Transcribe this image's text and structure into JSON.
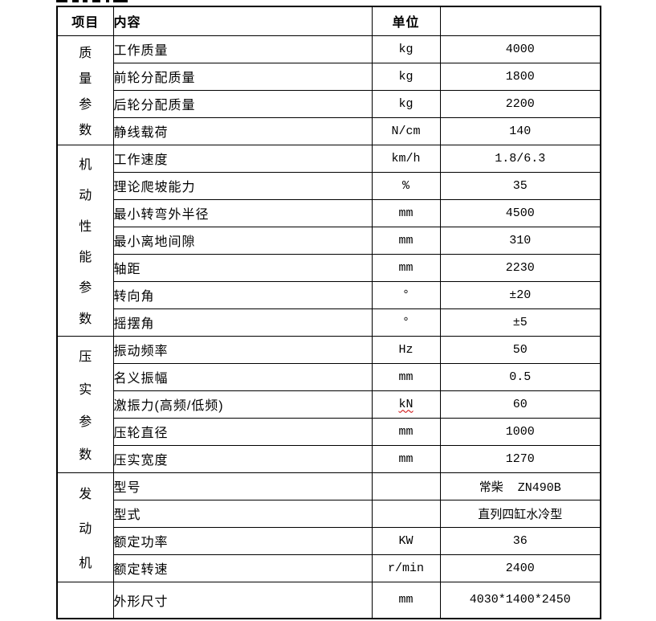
{
  "table": {
    "headers": {
      "item": "项目",
      "content": "内容",
      "unit": "单位",
      "value": ""
    },
    "groups": [
      {
        "label": "质量参数",
        "rows": [
          {
            "content": "工作质量",
            "unit": "kg",
            "value": "4000"
          },
          {
            "content": "前轮分配质量",
            "unit": "kg",
            "value": "1800"
          },
          {
            "content": "后轮分配质量",
            "unit": "kg",
            "value": "2200"
          },
          {
            "content": "静线载荷",
            "unit": "N/cm",
            "value": "140"
          }
        ]
      },
      {
        "label": "机动性能参数",
        "rows": [
          {
            "content": "工作速度",
            "unit": "km/h",
            "value": "1.8/6.3"
          },
          {
            "content": "理论爬坡能力",
            "unit": "%",
            "value": "35"
          },
          {
            "content": "最小转弯外半径",
            "unit": "mm",
            "value": "4500"
          },
          {
            "content": "最小离地间隙",
            "unit": "mm",
            "value": "310"
          },
          {
            "content": "轴距",
            "unit": "mm",
            "value": "2230"
          },
          {
            "content": "转向角",
            "unit": "°",
            "value": "±20"
          },
          {
            "content": "摇摆角",
            "unit": "°",
            "value": "±5"
          }
        ]
      },
      {
        "label": "压实参数",
        "rows": [
          {
            "content": "振动频率",
            "unit": "Hz",
            "value": "50"
          },
          {
            "content": "名义振幅",
            "unit": "mm",
            "value": "0.5"
          },
          {
            "content": "激振力(高频/低频)",
            "unit": "kN",
            "value": "60",
            "unit_spellcheck": true
          },
          {
            "content": "压轮直径",
            "unit": "mm",
            "value": "1000"
          },
          {
            "content": "压实宽度",
            "unit": "mm",
            "value": "1270"
          }
        ]
      },
      {
        "label": "发动机",
        "rows": [
          {
            "content": "型号",
            "unit": "",
            "value": "常柴  ZN490B"
          },
          {
            "content": "型式",
            "unit": "",
            "value": "直列四缸水冷型"
          },
          {
            "content": "额定功率",
            "unit": "KW",
            "value": "36"
          },
          {
            "content": "额定转速",
            "unit": "r/min",
            "value": "2400"
          }
        ]
      },
      {
        "label": "",
        "rows": [
          {
            "content": "外形尺寸",
            "unit": "mm",
            "value": "4030*1400*2450"
          }
        ]
      }
    ]
  }
}
